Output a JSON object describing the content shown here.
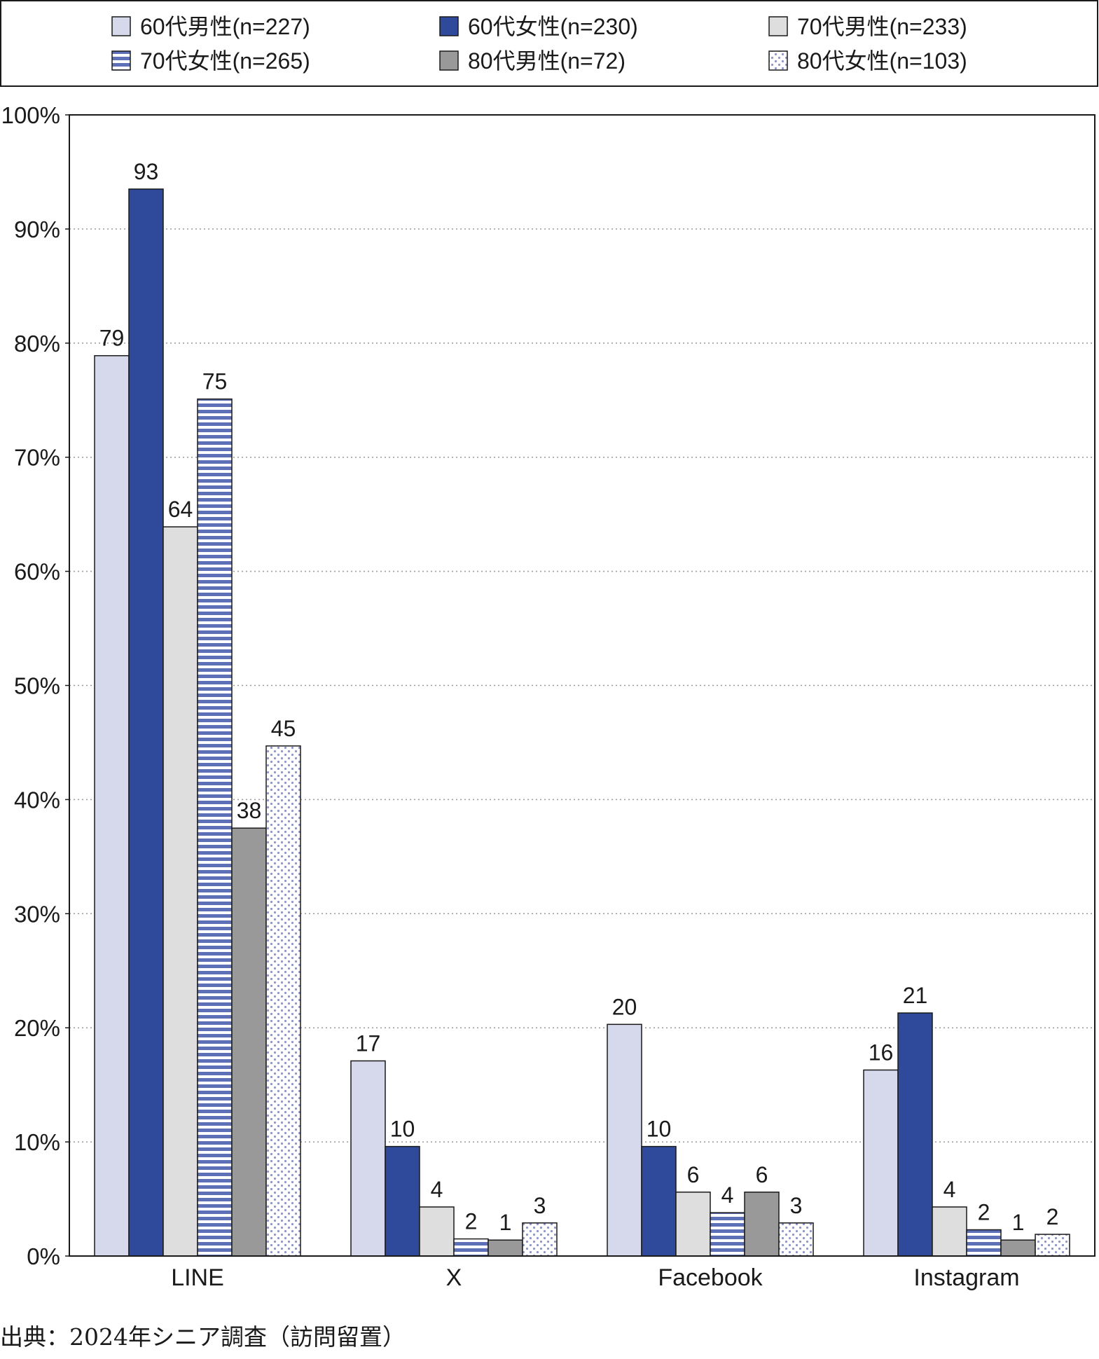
{
  "chart_data": {
    "type": "bar",
    "categories": [
      "LINE",
      "X",
      "Facebook",
      "Instagram"
    ],
    "series": [
      {
        "name": "60代男性(n=227)",
        "values": [
          79,
          17,
          20,
          16
        ],
        "fill": "#d6d8ec",
        "pattern": "solid"
      },
      {
        "name": "60代女性(n=230)",
        "values": [
          93,
          10,
          10,
          21
        ],
        "fill": "#2f4a9a",
        "pattern": "solid"
      },
      {
        "name": "70代男性(n=233)",
        "values": [
          64,
          4,
          6,
          4
        ],
        "fill": "#dedede",
        "pattern": "solid"
      },
      {
        "name": "70代女性(n=265)",
        "values": [
          75,
          2,
          4,
          2
        ],
        "fill": "#5d6fb7",
        "pattern": "stripes"
      },
      {
        "name": "80代男性(n=72)",
        "values": [
          38,
          1,
          6,
          1
        ],
        "fill": "#999999",
        "pattern": "solid"
      },
      {
        "name": "80代女性(n=103)",
        "values": [
          45,
          3,
          3,
          2
        ],
        "fill": "#8f96cc",
        "pattern": "dots"
      }
    ],
    "bar_heights_precise": [
      [
        78.9,
        17.1,
        20.3,
        16.3
      ],
      [
        93.5,
        9.6,
        9.6,
        21.3
      ],
      [
        63.9,
        4.3,
        5.6,
        4.3
      ],
      [
        75.1,
        1.5,
        3.8,
        2.3
      ],
      [
        37.5,
        1.4,
        5.6,
        1.4
      ],
      [
        44.7,
        2.9,
        2.9,
        1.9
      ]
    ],
    "yticks": [
      "0%",
      "10%",
      "20%",
      "30%",
      "40%",
      "50%",
      "60%",
      "70%",
      "80%",
      "90%",
      "100%"
    ],
    "ylim": [
      0,
      100
    ],
    "grid": "horizontal-dotted",
    "legend": "top",
    "colors": {
      "axis": "#1a1a1a",
      "grid": "#9a9a9a",
      "text": "#1a1a1a",
      "stripe_light": "#ffffff",
      "dot_bg": "#ffffff"
    }
  },
  "source_note": "出典：2024年シニア調査（訪問留置）"
}
